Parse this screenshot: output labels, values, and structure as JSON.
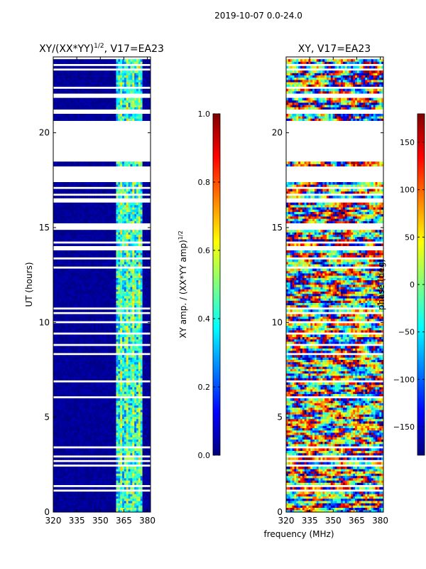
{
  "suptitle": "2019-10-07 0.0-24.0",
  "colors": {
    "jet": [
      "#00007f",
      "#0000ff",
      "#007fff",
      "#00ffff",
      "#7fff7f",
      "#ffff00",
      "#ff7f00",
      "#ff0000",
      "#7f0000"
    ]
  },
  "chart_data": [
    {
      "type": "heatmap",
      "title_main": "XY/(XX*YY)",
      "title_sup": "1/2",
      "title_tail": ", V17=EA23",
      "xlabel": "",
      "ylabel": "UT (hours)",
      "xlim": [
        320,
        382
      ],
      "ylim": [
        0,
        24
      ],
      "xticks": [
        "320",
        "335",
        "350",
        "365",
        "380"
      ],
      "yticks": [
        "0",
        "5",
        "10",
        "15",
        "20"
      ],
      "colorbar": {
        "label_main": "XY amp. / (XX*YY amp)",
        "label_sup": "1/2",
        "range": [
          0.0,
          1.0
        ],
        "ticks": [
          "0.0",
          "0.2",
          "0.4",
          "0.6",
          "0.8",
          "1.0"
        ]
      },
      "data_gaps_hours": [
        [
          18.5,
          20.6
        ],
        [
          17.5,
          18.2
        ]
      ],
      "bright_band_mhz": [
        360,
        377
      ],
      "typical_value_low_band": 0.0,
      "typical_value_high_band": 0.45
    },
    {
      "type": "heatmap",
      "title_main": "XY, V17=EA23",
      "title_sup": "",
      "title_tail": "",
      "xlabel": "frequency (MHz)",
      "ylabel": "",
      "xlim": [
        320,
        382
      ],
      "ylim": [
        0,
        24
      ],
      "xticks": [
        "320",
        "335",
        "350",
        "365",
        "380"
      ],
      "yticks": [
        "0",
        "5",
        "10",
        "15",
        "20"
      ],
      "colorbar": {
        "label_main": "phase (deg)",
        "label_sup": "",
        "range": [
          -180,
          180
        ],
        "ticks": [
          "−150",
          "−100",
          "−50",
          "0",
          "50",
          "100",
          "150"
        ]
      },
      "data_gaps_hours": [
        [
          18.5,
          20.6
        ],
        [
          17.5,
          18.2
        ]
      ]
    }
  ]
}
